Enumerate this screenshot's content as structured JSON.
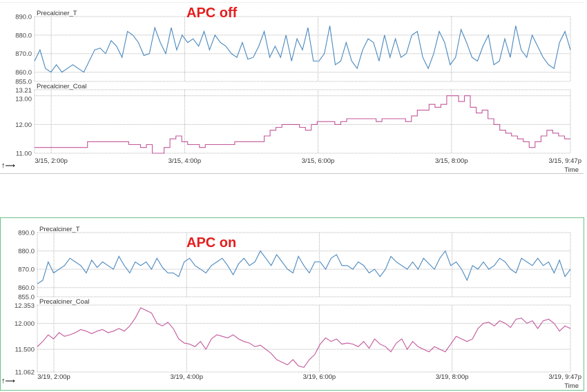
{
  "chart_data": [
    {
      "type": "line",
      "annotation": "APC off",
      "time_axis": {
        "label": "Time",
        "ticks": [
          "3/15, 2:00p",
          "3/15, 4:00p",
          "3/15, 6:00p",
          "3/15, 8:00p",
          "3/15, 9:47p"
        ],
        "tick_minutes": [
          15,
          135,
          255,
          375,
          482
        ],
        "range_minutes": [
          0,
          482
        ]
      },
      "panels": [
        {
          "name": "Precalciner_T",
          "ylim": [
            855.0,
            890.0
          ],
          "yticks": [
            "890.0",
            "880.0",
            "870.0",
            "860.0",
            "855.0"
          ],
          "ytick_values": [
            890,
            880,
            870,
            860,
            855
          ],
          "color": "#4a88bd",
          "step": false,
          "values": [
            866,
            872,
            862,
            860,
            864,
            860,
            862,
            864,
            862,
            860,
            866,
            872,
            873,
            870,
            877,
            874,
            868,
            882,
            880,
            876,
            869,
            870,
            884,
            876,
            870,
            884,
            872,
            880,
            876,
            878,
            874,
            882,
            872,
            880,
            876,
            874,
            870,
            868,
            876,
            867,
            868,
            874,
            882,
            868,
            874,
            868,
            880,
            866,
            878,
            872,
            884,
            866,
            866,
            870,
            885,
            864,
            866,
            876,
            866,
            862,
            872,
            878,
            876,
            866,
            880,
            868,
            878,
            868,
            870,
            880,
            882,
            868,
            862,
            870,
            882,
            876,
            864,
            868,
            883,
            876,
            868,
            866,
            874,
            880,
            864,
            866,
            878,
            868,
            885,
            872,
            868,
            880,
            874,
            868,
            864,
            862,
            876,
            882,
            872
          ]
        },
        {
          "name": "Precalciner_Coal",
          "ylim": [
            11.0,
            13.21
          ],
          "yticks": [
            "13.21",
            "13.00",
            "12.00",
            "11.00"
          ],
          "ytick_values": [
            13.21,
            13.0,
            12.0,
            11.0
          ],
          "color": "#c2579a",
          "step": true,
          "values": [
            11.2,
            11.2,
            11.2,
            11.2,
            11.2,
            11.2,
            11.2,
            11.2,
            11.2,
            11.4,
            11.4,
            11.4,
            11.4,
            11.4,
            11.4,
            11.4,
            11.3,
            11.3,
            11.2,
            11.3,
            11.0,
            11.0,
            11.2,
            11.5,
            11.6,
            11.4,
            11.3,
            11.3,
            11.2,
            11.3,
            11.3,
            11.3,
            11.3,
            11.3,
            11.4,
            11.4,
            11.4,
            11.4,
            11.4,
            11.6,
            11.8,
            11.9,
            12.0,
            12.0,
            12.0,
            11.9,
            11.8,
            12.0,
            12.1,
            12.1,
            12.1,
            12.0,
            12.1,
            12.2,
            12.2,
            12.2,
            12.2,
            12.2,
            12.1,
            12.2,
            12.2,
            12.2,
            12.2,
            12.1,
            12.3,
            12.5,
            12.5,
            12.7,
            12.6,
            12.7,
            13.0,
            13.0,
            12.8,
            13.0,
            12.6,
            12.4,
            12.5,
            12.2,
            12.0,
            11.8,
            11.7,
            11.6,
            11.5,
            11.4,
            11.2,
            11.4,
            11.6,
            11.8,
            11.7,
            11.6,
            11.5,
            11.5
          ]
        }
      ]
    },
    {
      "type": "line",
      "annotation": "APC on",
      "time_axis": {
        "label": "Time",
        "ticks": [
          "3/19, 2:00p",
          "3/19, 4:00p",
          "3/19, 6:00p",
          "3/19, 8:00p",
          "3/19, 9:47p"
        ],
        "tick_minutes": [
          15,
          135,
          255,
          375,
          482
        ],
        "range_minutes": [
          0,
          482
        ]
      },
      "panels": [
        {
          "name": "Precalciner_T",
          "ylim": [
            855.0,
            890.0
          ],
          "yticks": [
            "890.0",
            "880.0",
            "870.0",
            "860.0",
            "855.0"
          ],
          "ytick_values": [
            890,
            880,
            870,
            860,
            855
          ],
          "color": "#4a88bd",
          "step": false,
          "values": [
            862,
            864,
            874,
            868,
            870,
            872,
            876,
            874,
            872,
            868,
            875,
            871,
            874,
            872,
            870,
            877,
            872,
            868,
            874,
            872,
            874,
            870,
            876,
            871,
            868,
            868,
            866,
            874,
            876,
            872,
            870,
            868,
            872,
            874,
            876,
            872,
            867,
            873,
            876,
            872,
            874,
            880,
            876,
            872,
            878,
            874,
            870,
            868,
            877,
            872,
            868,
            874,
            874,
            870,
            876,
            878,
            872,
            872,
            870,
            874,
            872,
            868,
            870,
            866,
            870,
            877,
            874,
            872,
            870,
            874,
            870,
            876,
            873,
            870,
            876,
            880,
            872,
            874,
            870,
            864,
            872,
            870,
            874,
            870,
            872,
            876,
            874,
            870,
            868,
            876,
            874,
            872,
            876,
            872,
            874,
            868,
            875,
            866,
            870
          ]
        },
        {
          "name": "Precalciner_Coal",
          "ylim": [
            11.062,
            12.353
          ],
          "yticks": [
            "12.353",
            "12.000",
            "11.500",
            "11.062"
          ],
          "ytick_values": [
            12.353,
            12.0,
            11.5,
            11.062
          ],
          "color": "#c2579a",
          "step": false,
          "values": [
            11.55,
            11.65,
            11.78,
            11.7,
            11.82,
            11.75,
            11.78,
            11.82,
            11.88,
            11.85,
            11.8,
            11.85,
            11.88,
            11.82,
            11.85,
            11.9,
            11.85,
            11.95,
            12.1,
            12.3,
            12.25,
            12.2,
            12.0,
            11.95,
            12.02,
            11.9,
            11.7,
            11.62,
            11.6,
            11.55,
            11.65,
            11.5,
            11.7,
            11.78,
            11.75,
            11.72,
            11.78,
            11.7,
            11.65,
            11.62,
            11.55,
            11.58,
            11.5,
            11.42,
            11.3,
            11.25,
            11.2,
            11.3,
            11.18,
            11.15,
            11.3,
            11.4,
            11.6,
            11.72,
            11.65,
            11.7,
            11.6,
            11.62,
            11.6,
            11.55,
            11.65,
            11.52,
            11.7,
            11.6,
            11.55,
            11.45,
            11.62,
            11.7,
            11.5,
            11.65,
            11.55,
            11.5,
            11.45,
            11.55,
            11.5,
            11.45,
            11.6,
            11.75,
            11.7,
            11.65,
            11.7,
            11.9,
            12.0,
            12.02,
            11.95,
            12.05,
            12.0,
            11.92,
            12.08,
            12.1,
            12.0,
            12.05,
            11.9,
            12.05,
            12.08,
            12.0,
            11.85,
            11.95,
            11.9
          ]
        }
      ]
    }
  ],
  "icons": {
    "axis_icon": "axes-arrows-icon"
  }
}
